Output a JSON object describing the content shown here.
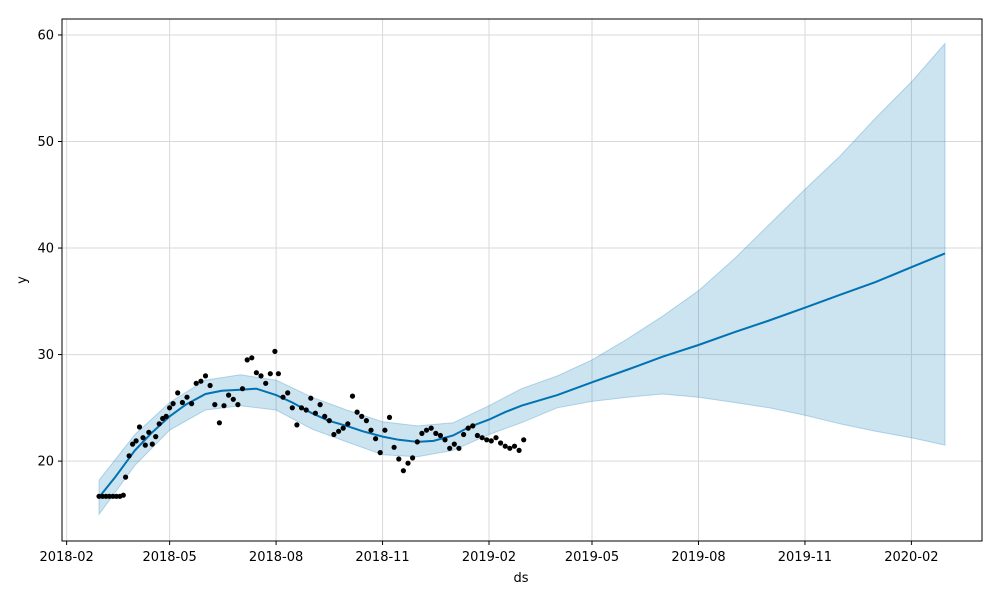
{
  "chart_data": {
    "type": "line",
    "title": "",
    "xlabel": "ds",
    "ylabel": "y",
    "grid": true,
    "xlim": [
      "2018-01-28",
      "2020-04-02"
    ],
    "ylim": [
      12.5,
      61.5
    ],
    "x_ticks": [
      "2018-02",
      "2018-05",
      "2018-08",
      "2018-11",
      "2019-02",
      "2019-05",
      "2019-08",
      "2019-11",
      "2020-02"
    ],
    "y_ticks": [
      20,
      30,
      40,
      50,
      60
    ],
    "colors": {
      "forecast_line": "#0072B2",
      "interval_fill": "#0072B2",
      "observed_points": "#000000",
      "grid": "#d9d9d9"
    },
    "series": [
      {
        "type": "line",
        "x": [
          "2018-03-01",
          "2018-03-15",
          "2018-04-01",
          "2018-04-15",
          "2018-05-01",
          "2018-05-15",
          "2018-06-01",
          "2018-06-15",
          "2018-07-01",
          "2018-07-15",
          "2018-08-01",
          "2018-08-15",
          "2018-09-01",
          "2018-09-15",
          "2018-10-01",
          "2018-10-15",
          "2018-11-01",
          "2018-11-15",
          "2018-12-01",
          "2018-12-15",
          "2019-01-01",
          "2019-01-15",
          "2019-02-01",
          "2019-02-15",
          "2019-03-01",
          "2019-04-01",
          "2019-05-01",
          "2019-06-01",
          "2019-07-01",
          "2019-08-01",
          "2019-09-01",
          "2019-10-01",
          "2019-11-01",
          "2019-12-01",
          "2020-01-01",
          "2020-02-01",
          "2020-03-01"
        ],
        "values": [
          16.6,
          18.5,
          21.0,
          22.6,
          24.2,
          25.3,
          26.3,
          26.6,
          26.7,
          26.8,
          26.2,
          25.5,
          24.5,
          23.8,
          23.3,
          22.8,
          22.3,
          22.0,
          21.8,
          21.9,
          22.4,
          23.2,
          23.9,
          24.6,
          25.2,
          26.2,
          27.4,
          28.6,
          29.8,
          30.9,
          32.1,
          33.2,
          34.4,
          35.6,
          36.8,
          38.2,
          39.5
        ]
      },
      {
        "type": "band",
        "x": [
          "2018-03-01",
          "2018-04-01",
          "2018-05-01",
          "2018-06-01",
          "2018-07-01",
          "2018-08-01",
          "2018-09-01",
          "2018-10-01",
          "2018-11-01",
          "2018-12-01",
          "2019-01-01",
          "2019-02-01",
          "2019-03-01",
          "2019-04-01",
          "2019-05-01",
          "2019-06-01",
          "2019-07-01",
          "2019-08-01",
          "2019-09-01",
          "2019-10-01",
          "2019-11-01",
          "2019-12-01",
          "2020-01-01",
          "2020-02-01",
          "2020-03-01"
        ],
        "lower": [
          15.0,
          19.6,
          22.9,
          24.8,
          25.2,
          24.8,
          23.0,
          21.8,
          20.6,
          20.4,
          21.0,
          22.5,
          23.6,
          25.0,
          25.6,
          26.0,
          26.3,
          26.0,
          25.5,
          25.0,
          24.3,
          23.5,
          22.8,
          22.2,
          21.5
        ],
        "upper": [
          18.2,
          22.5,
          25.5,
          27.6,
          28.1,
          27.6,
          26.0,
          24.8,
          23.7,
          23.3,
          23.6,
          25.2,
          26.8,
          28.0,
          29.5,
          31.5,
          33.6,
          36.0,
          39.0,
          42.2,
          45.5,
          48.6,
          52.2,
          55.6,
          59.2
        ]
      },
      {
        "type": "scatter",
        "x": [
          "2018-03-01",
          "2018-03-04",
          "2018-03-07",
          "2018-03-10",
          "2018-03-13",
          "2018-03-16",
          "2018-03-19",
          "2018-03-22",
          "2018-03-24",
          "2018-03-27",
          "2018-03-30",
          "2018-04-02",
          "2018-04-05",
          "2018-04-08",
          "2018-04-10",
          "2018-04-13",
          "2018-04-16",
          "2018-04-19",
          "2018-04-22",
          "2018-04-25",
          "2018-04-28",
          "2018-05-01",
          "2018-05-04",
          "2018-05-08",
          "2018-05-12",
          "2018-05-16",
          "2018-05-20",
          "2018-05-24",
          "2018-05-28",
          "2018-06-01",
          "2018-06-05",
          "2018-06-09",
          "2018-06-13",
          "2018-06-17",
          "2018-06-21",
          "2018-06-25",
          "2018-06-29",
          "2018-07-03",
          "2018-07-07",
          "2018-07-11",
          "2018-07-15",
          "2018-07-19",
          "2018-07-23",
          "2018-07-27",
          "2018-07-31",
          "2018-08-03",
          "2018-08-07",
          "2018-08-11",
          "2018-08-15",
          "2018-08-19",
          "2018-08-23",
          "2018-08-27",
          "2018-08-31",
          "2018-09-04",
          "2018-09-08",
          "2018-09-12",
          "2018-09-16",
          "2018-09-20",
          "2018-09-24",
          "2018-09-28",
          "2018-10-02",
          "2018-10-06",
          "2018-10-10",
          "2018-10-14",
          "2018-10-18",
          "2018-10-22",
          "2018-10-26",
          "2018-10-30",
          "2018-11-03",
          "2018-11-07",
          "2018-11-11",
          "2018-11-15",
          "2018-11-19",
          "2018-11-23",
          "2018-11-27",
          "2018-12-01",
          "2018-12-05",
          "2018-12-09",
          "2018-12-13",
          "2018-12-17",
          "2018-12-21",
          "2018-12-25",
          "2018-12-29",
          "2019-01-02",
          "2019-01-06",
          "2019-01-10",
          "2019-01-14",
          "2019-01-18",
          "2019-01-22",
          "2019-01-26",
          "2019-01-30",
          "2019-02-03",
          "2019-02-07",
          "2019-02-11",
          "2019-02-15",
          "2019-02-19",
          "2019-02-23",
          "2019-02-27",
          "2019-03-03"
        ],
        "values": [
          16.7,
          16.7,
          16.7,
          16.7,
          16.7,
          16.7,
          16.7,
          16.8,
          18.5,
          20.5,
          21.6,
          21.9,
          23.2,
          22.2,
          21.5,
          22.7,
          21.6,
          22.3,
          23.5,
          24.0,
          24.2,
          25.0,
          25.4,
          26.4,
          25.5,
          26.0,
          25.4,
          27.3,
          27.5,
          28.0,
          27.1,
          25.3,
          23.6,
          25.2,
          26.2,
          25.8,
          25.3,
          26.8,
          29.5,
          29.7,
          28.3,
          28.0,
          27.3,
          28.2,
          30.3,
          28.2,
          26.0,
          26.4,
          25.0,
          23.4,
          25.0,
          24.8,
          25.9,
          24.5,
          25.3,
          24.2,
          23.8,
          22.5,
          22.8,
          23.1,
          23.5,
          26.1,
          24.6,
          24.2,
          23.8,
          22.9,
          22.1,
          20.8,
          22.9,
          24.1,
          21.3,
          20.2,
          19.1,
          19.8,
          20.3,
          21.8,
          22.6,
          22.9,
          23.1,
          22.6,
          22.4,
          22.0,
          21.2,
          21.6,
          21.2,
          22.5,
          23.1,
          23.3,
          22.4,
          22.2,
          22.0,
          21.9,
          22.2,
          21.7,
          21.4,
          21.2,
          21.4,
          21.0,
          22.0
        ]
      }
    ]
  }
}
